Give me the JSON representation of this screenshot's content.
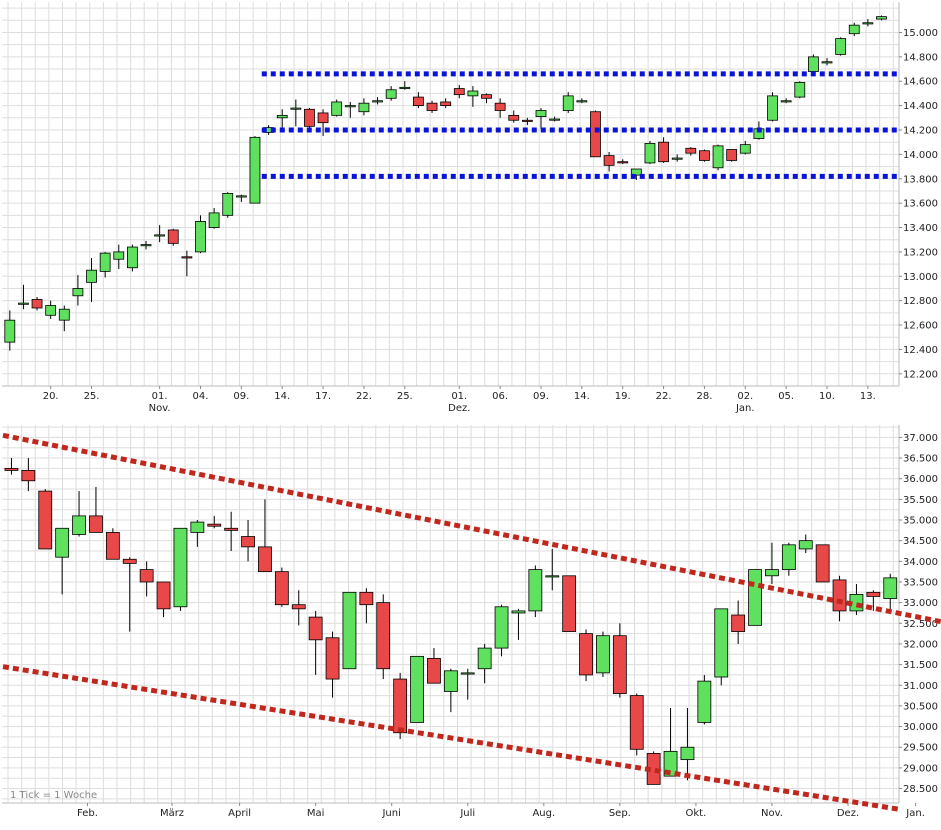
{
  "chart_data": [
    {
      "type": "candlestick",
      "title": "",
      "xlabel": "",
      "ylabel": "",
      "ylim": [
        12100,
        15250
      ],
      "yticks": [
        12200,
        12400,
        12600,
        12800,
        13000,
        13200,
        13400,
        13600,
        13800,
        14000,
        14200,
        14400,
        14600,
        14800,
        15000
      ],
      "ytick_labels": [
        "12.200",
        "12.400",
        "12.600",
        "12.800",
        "13.000",
        "13.200",
        "13.400",
        "13.600",
        "13.800",
        "14.000",
        "14.200",
        "14.400",
        "14.600",
        "14.800",
        "15.000"
      ],
      "xticks": [
        {
          "index": 3,
          "label": "20."
        },
        {
          "index": 6,
          "label": "25."
        },
        {
          "index": 11,
          "label": "01.",
          "sublabel": "Nov."
        },
        {
          "index": 14,
          "label": "04."
        },
        {
          "index": 17,
          "label": "09."
        },
        {
          "index": 20,
          "label": "14."
        },
        {
          "index": 23,
          "label": "17."
        },
        {
          "index": 26,
          "label": "22."
        },
        {
          "index": 29,
          "label": "25."
        },
        {
          "index": 33,
          "label": "01.",
          "sublabel": "Dez."
        },
        {
          "index": 36,
          "label": "06."
        },
        {
          "index": 39,
          "label": "09."
        },
        {
          "index": 42,
          "label": "14."
        },
        {
          "index": 45,
          "label": "19."
        },
        {
          "index": 48,
          "label": "22."
        },
        {
          "index": 51,
          "label": "28."
        },
        {
          "index": 54,
          "label": "02.",
          "sublabel": "Jan."
        },
        {
          "index": 57,
          "label": "05."
        },
        {
          "index": 60,
          "label": "10."
        },
        {
          "index": 63,
          "label": "13."
        }
      ],
      "candles": [
        {
          "o": 12460,
          "h": 12720,
          "l": 12390,
          "c": 12640
        },
        {
          "o": 12770,
          "h": 12930,
          "l": 12730,
          "c": 12780
        },
        {
          "o": 12810,
          "h": 12830,
          "l": 12720,
          "c": 12740
        },
        {
          "o": 12680,
          "h": 12800,
          "l": 12650,
          "c": 12760
        },
        {
          "o": 12640,
          "h": 12760,
          "l": 12550,
          "c": 12730
        },
        {
          "o": 12840,
          "h": 13010,
          "l": 12760,
          "c": 12900
        },
        {
          "o": 12950,
          "h": 13150,
          "l": 12790,
          "c": 13050
        },
        {
          "o": 13040,
          "h": 13200,
          "l": 12990,
          "c": 13190
        },
        {
          "o": 13140,
          "h": 13260,
          "l": 13060,
          "c": 13200
        },
        {
          "o": 13070,
          "h": 13260,
          "l": 13040,
          "c": 13240
        },
        {
          "o": 13260,
          "h": 13290,
          "l": 13220,
          "c": 13260
        },
        {
          "o": 13330,
          "h": 13420,
          "l": 13280,
          "c": 13340
        },
        {
          "o": 13380,
          "h": 13390,
          "l": 13250,
          "c": 13270
        },
        {
          "o": 13160,
          "h": 13210,
          "l": 13000,
          "c": 13150
        },
        {
          "o": 13200,
          "h": 13500,
          "l": 13190,
          "c": 13450
        },
        {
          "o": 13400,
          "h": 13560,
          "l": 13390,
          "c": 13520
        },
        {
          "o": 13500,
          "h": 13690,
          "l": 13480,
          "c": 13680
        },
        {
          "o": 13650,
          "h": 13670,
          "l": 13610,
          "c": 13660
        },
        {
          "o": 13600,
          "h": 14150,
          "l": 13600,
          "c": 14140
        },
        {
          "o": 14180,
          "h": 14240,
          "l": 14160,
          "c": 14220
        },
        {
          "o": 14300,
          "h": 14370,
          "l": 14180,
          "c": 14320
        },
        {
          "o": 14380,
          "h": 14450,
          "l": 14230,
          "c": 14380
        },
        {
          "o": 14370,
          "h": 14380,
          "l": 14190,
          "c": 14230
        },
        {
          "o": 14340,
          "h": 14370,
          "l": 14150,
          "c": 14260
        },
        {
          "o": 14320,
          "h": 14450,
          "l": 14310,
          "c": 14430
        },
        {
          "o": 14400,
          "h": 14430,
          "l": 14300,
          "c": 14400
        },
        {
          "o": 14350,
          "h": 14460,
          "l": 14320,
          "c": 14420
        },
        {
          "o": 14430,
          "h": 14470,
          "l": 14410,
          "c": 14440
        },
        {
          "o": 14460,
          "h": 14560,
          "l": 14440,
          "c": 14530
        },
        {
          "o": 14550,
          "h": 14600,
          "l": 14530,
          "c": 14550
        },
        {
          "o": 14470,
          "h": 14510,
          "l": 14380,
          "c": 14400
        },
        {
          "o": 14420,
          "h": 14440,
          "l": 14340,
          "c": 14360
        },
        {
          "o": 14430,
          "h": 14460,
          "l": 14380,
          "c": 14400
        },
        {
          "o": 14540,
          "h": 14570,
          "l": 14460,
          "c": 14490
        },
        {
          "o": 14480,
          "h": 14560,
          "l": 14390,
          "c": 14520
        },
        {
          "o": 14490,
          "h": 14500,
          "l": 14420,
          "c": 14460
        },
        {
          "o": 14420,
          "h": 14460,
          "l": 14300,
          "c": 14360
        },
        {
          "o": 14320,
          "h": 14360,
          "l": 14260,
          "c": 14280
        },
        {
          "o": 14280,
          "h": 14300,
          "l": 14240,
          "c": 14270
        },
        {
          "o": 14310,
          "h": 14380,
          "l": 14210,
          "c": 14360
        },
        {
          "o": 14290,
          "h": 14310,
          "l": 14270,
          "c": 14290
        },
        {
          "o": 14360,
          "h": 14510,
          "l": 14340,
          "c": 14480
        },
        {
          "o": 14440,
          "h": 14460,
          "l": 14420,
          "c": 14440
        },
        {
          "o": 14350,
          "h": 14360,
          "l": 13980,
          "c": 13980
        },
        {
          "o": 13990,
          "h": 14020,
          "l": 13860,
          "c": 13910
        },
        {
          "o": 13940,
          "h": 13960,
          "l": 13920,
          "c": 13930
        },
        {
          "o": 13830,
          "h": 13880,
          "l": 13790,
          "c": 13880
        },
        {
          "o": 13930,
          "h": 14110,
          "l": 13920,
          "c": 14090
        },
        {
          "o": 14100,
          "h": 14140,
          "l": 13930,
          "c": 13940
        },
        {
          "o": 13960,
          "h": 14000,
          "l": 13940,
          "c": 13970
        },
        {
          "o": 14050,
          "h": 14060,
          "l": 13990,
          "c": 14010
        },
        {
          "o": 14030,
          "h": 14040,
          "l": 13940,
          "c": 13950
        },
        {
          "o": 13890,
          "h": 14080,
          "l": 13870,
          "c": 14070
        },
        {
          "o": 14040,
          "h": 14040,
          "l": 13940,
          "c": 13950
        },
        {
          "o": 14010,
          "h": 14110,
          "l": 14000,
          "c": 14080
        },
        {
          "o": 14130,
          "h": 14270,
          "l": 14120,
          "c": 14210
        },
        {
          "o": 14280,
          "h": 14510,
          "l": 14270,
          "c": 14480
        },
        {
          "o": 14440,
          "h": 14460,
          "l": 14420,
          "c": 14440
        },
        {
          "o": 14470,
          "h": 14600,
          "l": 14460,
          "c": 14590
        },
        {
          "o": 14680,
          "h": 14820,
          "l": 14650,
          "c": 14800
        },
        {
          "o": 14750,
          "h": 14790,
          "l": 14730,
          "c": 14760
        },
        {
          "o": 14820,
          "h": 14960,
          "l": 14810,
          "c": 14950
        },
        {
          "o": 14990,
          "h": 15080,
          "l": 14970,
          "c": 15060
        },
        {
          "o": 15070,
          "h": 15110,
          "l": 15050,
          "c": 15080
        },
        {
          "o": 15110,
          "h": 15140,
          "l": 15100,
          "c": 15130
        }
      ],
      "support_resistance_lines": [
        {
          "value": 14660,
          "from_index": 19
        },
        {
          "value": 14200,
          "from_index": 19
        },
        {
          "value": 13820,
          "from_index": 19
        }
      ]
    },
    {
      "type": "candlestick",
      "title": "",
      "xlabel": "",
      "ylabel": "",
      "ylim": [
        28150,
        37300
      ],
      "yticks": [
        28500,
        29000,
        29500,
        30000,
        30500,
        31000,
        31500,
        32000,
        32500,
        33000,
        33500,
        34000,
        34500,
        35000,
        35500,
        36000,
        36500,
        37000
      ],
      "ytick_labels": [
        "28.500",
        "29.000",
        "29.500",
        "30.000",
        "30.500",
        "31.000",
        "31.500",
        "32.000",
        "32.500",
        "33.000",
        "33.500",
        "34.000",
        "34.500",
        "35.000",
        "35.500",
        "36.000",
        "36.500",
        "37.000"
      ],
      "xticks": [
        {
          "index": 4.5,
          "label": "Feb."
        },
        {
          "index": 9.5,
          "label": "März"
        },
        {
          "index": 13.5,
          "label": "April"
        },
        {
          "index": 18,
          "label": "Mai"
        },
        {
          "index": 22.5,
          "label": "Juni"
        },
        {
          "index": 27,
          "label": "Juli"
        },
        {
          "index": 31.5,
          "label": "Aug."
        },
        {
          "index": 36,
          "label": "Sep."
        },
        {
          "index": 40.5,
          "label": "Okt."
        },
        {
          "index": 45,
          "label": "Nov."
        },
        {
          "index": 49.5,
          "label": "Dez."
        },
        {
          "index": 53.5,
          "label": "Jan."
        }
      ],
      "candles": [
        {
          "o": 36250,
          "h": 36500,
          "l": 36100,
          "c": 36200
        },
        {
          "o": 36200,
          "h": 36500,
          "l": 35700,
          "c": 35950
        },
        {
          "o": 35700,
          "h": 35750,
          "l": 34300,
          "c": 34300
        },
        {
          "o": 34100,
          "h": 34800,
          "l": 33200,
          "c": 34800
        },
        {
          "o": 34650,
          "h": 35700,
          "l": 34600,
          "c": 35100
        },
        {
          "o": 35100,
          "h": 35800,
          "l": 34700,
          "c": 34700
        },
        {
          "o": 34700,
          "h": 34800,
          "l": 34050,
          "c": 34050
        },
        {
          "o": 34050,
          "h": 34100,
          "l": 32300,
          "c": 33950
        },
        {
          "o": 33800,
          "h": 34000,
          "l": 33150,
          "c": 33500
        },
        {
          "o": 33500,
          "h": 33500,
          "l": 32650,
          "c": 32850
        },
        {
          "o": 32900,
          "h": 34800,
          "l": 32800,
          "c": 34800
        },
        {
          "o": 34700,
          "h": 35000,
          "l": 34350,
          "c": 34950
        },
        {
          "o": 34900,
          "h": 35100,
          "l": 34800,
          "c": 34850
        },
        {
          "o": 34800,
          "h": 35200,
          "l": 34250,
          "c": 34750
        },
        {
          "o": 34600,
          "h": 35000,
          "l": 34000,
          "c": 34350
        },
        {
          "o": 34350,
          "h": 35500,
          "l": 33750,
          "c": 33750
        },
        {
          "o": 33750,
          "h": 33850,
          "l": 32900,
          "c": 32950
        },
        {
          "o": 32950,
          "h": 33300,
          "l": 32450,
          "c": 32850
        },
        {
          "o": 32650,
          "h": 32800,
          "l": 31250,
          "c": 32100
        },
        {
          "o": 32150,
          "h": 32300,
          "l": 30700,
          "c": 31150
        },
        {
          "o": 31400,
          "h": 33200,
          "l": 31400,
          "c": 33250
        },
        {
          "o": 33250,
          "h": 33350,
          "l": 32500,
          "c": 32950
        },
        {
          "o": 33000,
          "h": 33200,
          "l": 31150,
          "c": 31400
        },
        {
          "o": 31150,
          "h": 31300,
          "l": 29700,
          "c": 29850
        },
        {
          "o": 30100,
          "h": 31700,
          "l": 30100,
          "c": 31700
        },
        {
          "o": 31650,
          "h": 31900,
          "l": 31050,
          "c": 31050
        },
        {
          "o": 30850,
          "h": 31400,
          "l": 30350,
          "c": 31350
        },
        {
          "o": 31300,
          "h": 31400,
          "l": 30650,
          "c": 31300
        },
        {
          "o": 31400,
          "h": 32000,
          "l": 31050,
          "c": 31900
        },
        {
          "o": 31900,
          "h": 32950,
          "l": 31700,
          "c": 32900
        },
        {
          "o": 32750,
          "h": 32850,
          "l": 32100,
          "c": 32800
        },
        {
          "o": 32800,
          "h": 33900,
          "l": 32650,
          "c": 33800
        },
        {
          "o": 33650,
          "h": 34300,
          "l": 33300,
          "c": 33650
        },
        {
          "o": 33650,
          "h": 33650,
          "l": 32300,
          "c": 32300
        },
        {
          "o": 32250,
          "h": 32350,
          "l": 31100,
          "c": 31250
        },
        {
          "o": 31300,
          "h": 32300,
          "l": 31200,
          "c": 32200
        },
        {
          "o": 32200,
          "h": 32500,
          "l": 30700,
          "c": 30800
        },
        {
          "o": 30750,
          "h": 30800,
          "l": 29300,
          "c": 29450
        },
        {
          "o": 29350,
          "h": 29400,
          "l": 28600,
          "c": 28600
        },
        {
          "o": 28800,
          "h": 30450,
          "l": 28800,
          "c": 29400
        },
        {
          "o": 29200,
          "h": 30450,
          "l": 28700,
          "c": 29500
        },
        {
          "o": 30100,
          "h": 31250,
          "l": 30050,
          "c": 31100
        },
        {
          "o": 31200,
          "h": 32850,
          "l": 31000,
          "c": 32850
        },
        {
          "o": 32700,
          "h": 33050,
          "l": 32000,
          "c": 32300
        },
        {
          "o": 32450,
          "h": 33800,
          "l": 32450,
          "c": 33800
        },
        {
          "o": 33650,
          "h": 34450,
          "l": 33450,
          "c": 33800
        },
        {
          "o": 33800,
          "h": 34450,
          "l": 33650,
          "c": 34400
        },
        {
          "o": 34300,
          "h": 34650,
          "l": 34200,
          "c": 34500
        },
        {
          "o": 34400,
          "h": 34400,
          "l": 33500,
          "c": 33500
        },
        {
          "o": 33550,
          "h": 33650,
          "l": 32550,
          "c": 32800
        },
        {
          "o": 32800,
          "h": 33450,
          "l": 32700,
          "c": 33200
        },
        {
          "o": 33250,
          "h": 33300,
          "l": 32800,
          "c": 33150
        },
        {
          "o": 33100,
          "h": 33700,
          "l": 32800,
          "c": 33600
        }
      ],
      "trend_lines": [
        {
          "from": [
            -0.5,
            37050
          ],
          "to": [
            55.5,
            32500
          ]
        },
        {
          "from": [
            -0.5,
            31450
          ],
          "to": [
            52.5,
            28000
          ]
        }
      ],
      "note": "1 Tick = 1 Woche"
    }
  ],
  "colors": {
    "up": "#5fe05f",
    "down": "#e84848",
    "wick": "#000000",
    "grid": "#dddddd",
    "support_line": "#0a14d8",
    "trend_line": "#c0281e",
    "axis_text": "#222222"
  }
}
